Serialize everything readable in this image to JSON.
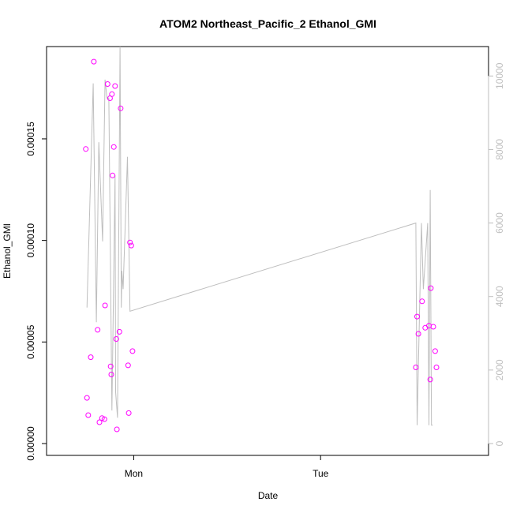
{
  "chart_data": {
    "type": "scatter",
    "title": "ATOM2 Northeast_Pacific_2 Ethanol_GMI",
    "xlabel": "Date",
    "ylabel": "Ethanol_GMI",
    "xlim_hours": [
      -12.6,
      55.7
    ],
    "x_ticks": [
      {
        "hours": 0,
        "label": "Mon"
      },
      {
        "hours": 30,
        "label": "Tue"
      }
    ],
    "ylim": [
      0,
      0.00019
    ],
    "y_ticks": [
      {
        "value": 0.0,
        "label": "0.00000"
      },
      {
        "value": 5e-05,
        "label": "0.00005"
      },
      {
        "value": 0.0001,
        "label": "0.00010"
      },
      {
        "value": 0.00015,
        "label": "0.00015"
      }
    ],
    "y2lim": [
      0,
      10500
    ],
    "y2_ticks": [
      {
        "value": 0,
        "label": "0"
      },
      {
        "value": 2000,
        "label": "2000"
      },
      {
        "value": 4000,
        "label": "4000"
      },
      {
        "value": 6000,
        "label": "6000"
      },
      {
        "value": 8000,
        "label": "8000"
      },
      {
        "value": 10000,
        "label": "10000"
      }
    ],
    "colors": {
      "points": "#ff00ff",
      "line": "#bebebe",
      "axis": "#000000",
      "right_axis": "#bebebe"
    },
    "series": [
      {
        "type": "points",
        "x": [
          -7.7,
          -7.5,
          -7.3,
          -6.9,
          -6.4,
          -5.8,
          -5.5,
          -5.1,
          -4.7,
          -4.6,
          -4.2,
          -3.8,
          -3.7,
          -3.6,
          -3.5,
          -3.4,
          -3.2,
          -3.0,
          -2.8,
          -2.7,
          -2.3,
          -2.1,
          -0.9,
          -0.8,
          -0.6,
          -0.4,
          -0.2,
          45.3,
          45.5,
          45.7,
          46.3,
          46.8,
          47.4,
          47.6,
          47.7,
          48.1,
          48.4,
          48.6
        ],
        "y": [
          0.000145,
          2.25e-05,
          1.4e-05,
          4.25e-05,
          0.000188,
          5.6e-05,
          1.05e-05,
          1.25e-05,
          1.2e-05,
          6.8e-05,
          0.000177,
          0.00017,
          3.8e-05,
          3.4e-05,
          0.000172,
          0.000132,
          0.000146,
          0.000176,
          5.15e-05,
          7e-06,
          5.5e-05,
          0.000165,
          3.85e-05,
          1.5e-05,
          9.9e-05,
          9.75e-05,
          4.55e-05,
          3.75e-05,
          6.25e-05,
          5.4e-05,
          7e-05,
          5.7e-05,
          5.8e-05,
          3.15e-05,
          7.65e-05,
          5.75e-05,
          4.55e-05,
          3.75e-05
        ]
      },
      {
        "type": "line",
        "x": [
          -7.5,
          -6.5,
          -6.0,
          -5.6,
          -5.0,
          -4.6,
          -4.3,
          -4.0,
          -3.5,
          -3.0,
          -2.9,
          -2.6,
          -2.2,
          -2.0,
          -1.9,
          -1.7,
          -1.0,
          -0.6,
          45.3,
          45.5,
          46.2,
          46.5,
          47.2,
          47.4,
          47.6,
          47.8,
          48.0
        ],
        "y": [
          3700,
          9800,
          3300,
          8200,
          5500,
          9900,
          9400,
          9400,
          900,
          7300,
          1400,
          700,
          10800,
          3700,
          4700,
          4200,
          7800,
          3600,
          6000,
          500,
          6000,
          4200,
          6000,
          500,
          6900,
          500,
          500
        ]
      }
    ]
  }
}
